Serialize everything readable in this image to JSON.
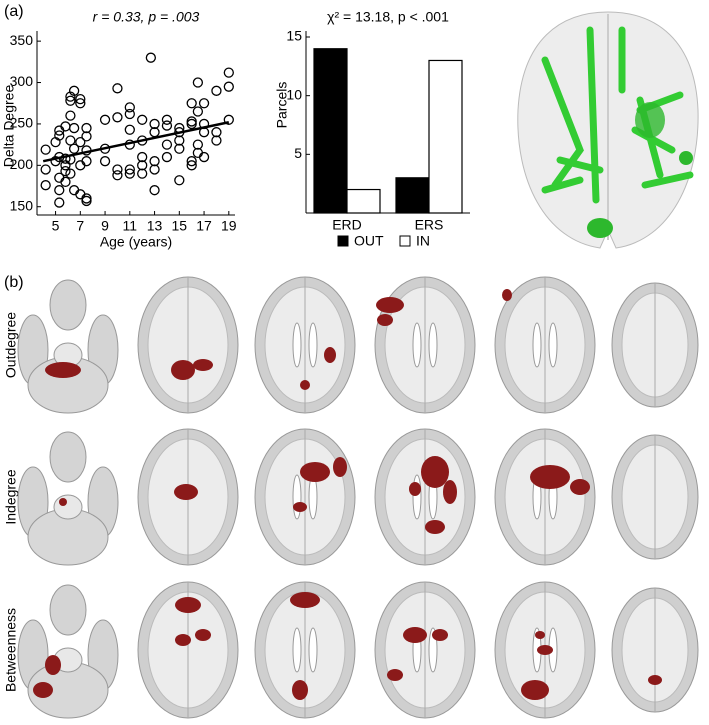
{
  "panel_a_label": "(a)",
  "panel_b_label": "(b)",
  "chart_data": [
    {
      "type": "scatter",
      "title": "r = 0.33, p = .003",
      "xlabel": "Age (years)",
      "ylabel": "Delta Degree",
      "x": [
        4.2,
        4.2,
        4.2,
        5,
        5,
        5.3,
        5.3,
        5.3,
        5.3,
        5.3,
        5.3,
        5.8,
        5.8,
        5.8,
        5.8,
        5.8,
        6.2,
        6.2,
        6.2,
        6.2,
        6.2,
        6.2,
        6.5,
        6.5,
        6.5,
        6.5,
        7,
        7,
        7,
        7,
        7,
        7.5,
        7.5,
        7.5,
        7.5,
        7.5,
        7.5,
        9,
        9,
        9,
        10,
        10,
        10,
        10,
        11,
        11,
        11,
        11,
        11,
        11,
        12,
        12,
        12,
        12,
        12,
        12.7,
        13,
        13,
        13,
        13,
        13,
        14,
        14,
        14,
        14,
        15,
        15,
        15,
        15,
        15,
        16,
        16,
        16,
        16,
        16,
        16.5,
        16.5,
        16.5,
        16.5,
        17,
        17,
        17,
        17,
        18,
        18,
        18,
        19,
        19,
        19
      ],
      "values": [
        219,
        195,
        176,
        205,
        228,
        242,
        236,
        210,
        185,
        170,
        155,
        247,
        208,
        200,
        193,
        180,
        283,
        278,
        260,
        230,
        207,
        190,
        290,
        245,
        220,
        170,
        280,
        275,
        228,
        200,
        165,
        245,
        235,
        218,
        205,
        160,
        157,
        255,
        220,
        205,
        293,
        258,
        195,
        188,
        270,
        262,
        243,
        225,
        195,
        190,
        255,
        230,
        210,
        200,
        190,
        330,
        250,
        240,
        205,
        195,
        170,
        255,
        248,
        225,
        210,
        245,
        240,
        230,
        220,
        182,
        275,
        253,
        250,
        205,
        200,
        300,
        265,
        225,
        215,
        275,
        250,
        240,
        210,
        290,
        240,
        230,
        312,
        295,
        255
      ],
      "fit": {
        "x": [
          4,
          19
        ],
        "values": [
          205,
          252
        ]
      },
      "xlim": [
        3.5,
        19.5
      ],
      "xticks": [
        5,
        7,
        9,
        11,
        13,
        15,
        17,
        19
      ],
      "ylim": [
        140,
        355
      ],
      "yticks": [
        150,
        200,
        250,
        300,
        350
      ],
      "color": "#000000"
    },
    {
      "type": "bar",
      "title": "χ² = 13.18, p < .001",
      "ylabel": "Parcels",
      "categories": [
        "ERD",
        "ERS"
      ],
      "series": [
        {
          "name": "OUT",
          "color": "#000000",
          "values": [
            14,
            3
          ]
        },
        {
          "name": "IN",
          "color": "#ffffff",
          "values": [
            2,
            13
          ]
        }
      ],
      "ylim": [
        0,
        15
      ],
      "yticks": [
        5,
        10,
        15
      ]
    }
  ],
  "row_labels": [
    "Outdegree",
    "Indegree",
    "Betweenness"
  ]
}
